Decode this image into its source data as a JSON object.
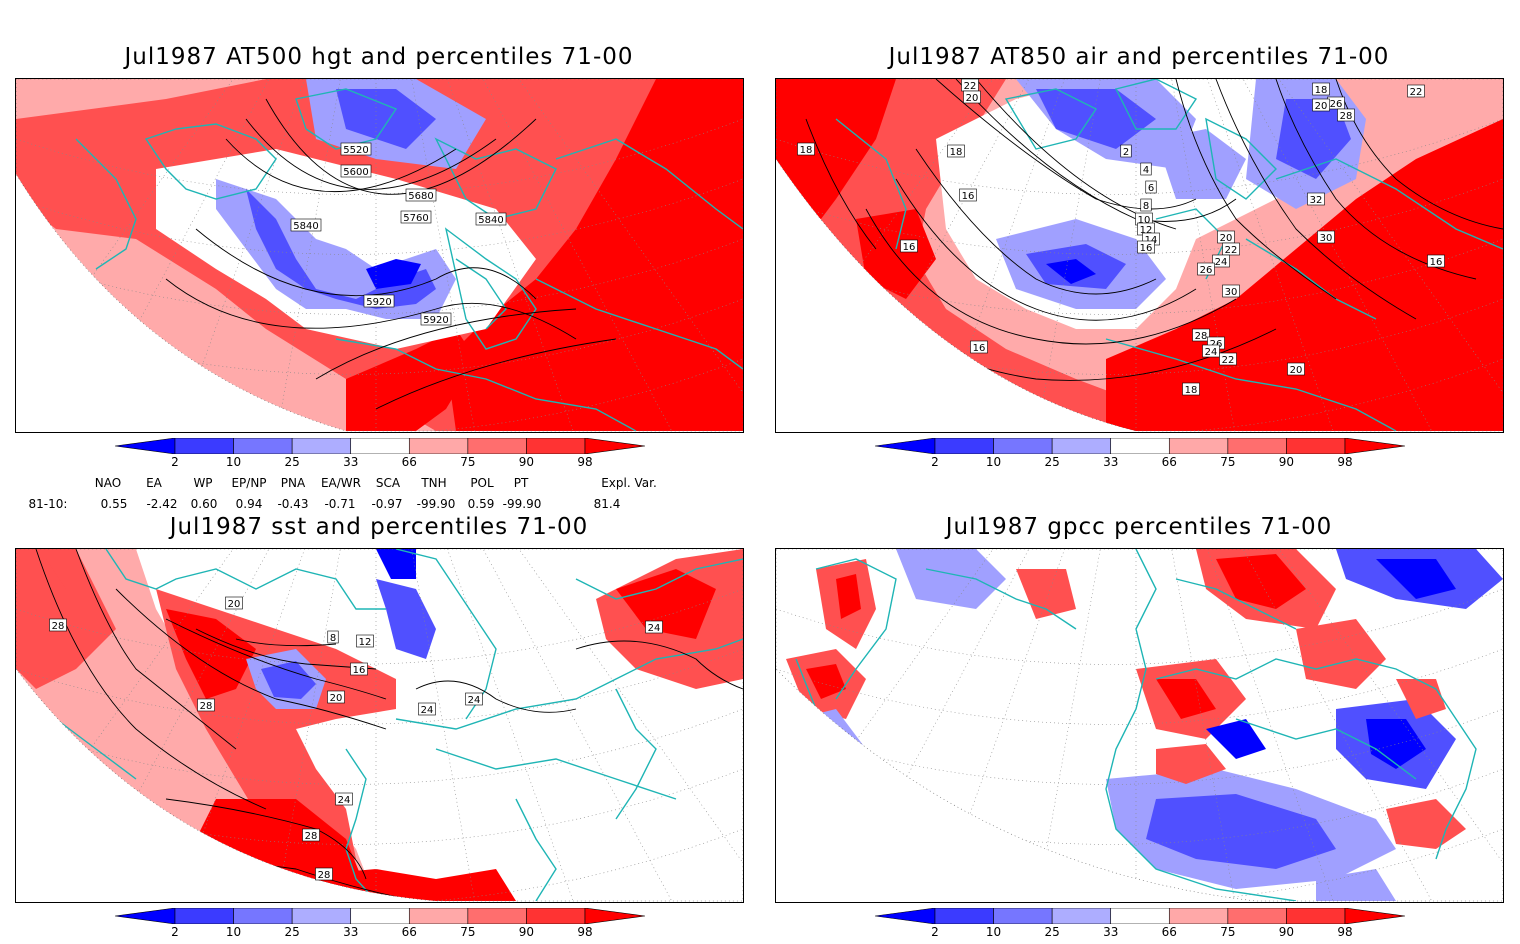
{
  "panels": [
    {
      "id": "p1",
      "title": "Jul1987 AT500 hgt and percentiles 71-00",
      "contour_labels": [
        "5520",
        "5600",
        "5680",
        "5760",
        "5840",
        "5840",
        "5920",
        "5920"
      ]
    },
    {
      "id": "p2",
      "title": "Jul1987 AT850 air and percentiles 71-00",
      "contour_labels": [
        "22",
        "20",
        "18",
        "18",
        "16",
        "16",
        "16",
        "2",
        "4",
        "6",
        "8",
        "10",
        "12",
        "14",
        "16",
        "20",
        "22",
        "24",
        "26",
        "30",
        "28",
        "26",
        "24",
        "22",
        "18",
        "20",
        "32",
        "30",
        "16",
        "26",
        "28",
        "18",
        "20",
        "22"
      ]
    },
    {
      "id": "p3",
      "title": "Jul1987 sst and percentiles 71-00",
      "contour_labels": [
        "28",
        "20",
        "8",
        "12",
        "16",
        "20",
        "24",
        "28",
        "28",
        "28",
        "24",
        "24",
        "24"
      ]
    },
    {
      "id": "p4",
      "title": "Jul1987 gpcc percentiles 71-00",
      "contour_labels": []
    }
  ],
  "colorbar": {
    "labels": [
      "2",
      "10",
      "25",
      "33",
      "66",
      "75",
      "90",
      "98"
    ],
    "colors": [
      "#0000ff",
      "#3b3bff",
      "#7676ff",
      "#adadff",
      "#ffffff",
      "#ffa8a8",
      "#ff6e6e",
      "#ff3333",
      "#ff0000"
    ]
  },
  "indices": {
    "names": [
      "NAO",
      "EA",
      "WP",
      "EP/NP",
      "PNA",
      "EA/WR",
      "SCA",
      "TNH",
      "POL",
      "PT",
      "Expl. Var."
    ],
    "period": "81-10:",
    "values": [
      "0.55",
      "-2.42",
      "0.60",
      "0.94",
      "-0.43",
      "-0.71",
      "-0.97",
      "-99.90",
      "0.59",
      "-99.90",
      "81.4"
    ]
  },
  "colors": {
    "coast": "#1fb5b5",
    "contour": "#000000",
    "deep_red": "#ff0000",
    "mid_red": "#ff5050",
    "light_red": "#ffaaaa",
    "light_blue": "#a0a0ff",
    "mid_blue": "#5050ff",
    "deep_blue": "#0000ff"
  }
}
